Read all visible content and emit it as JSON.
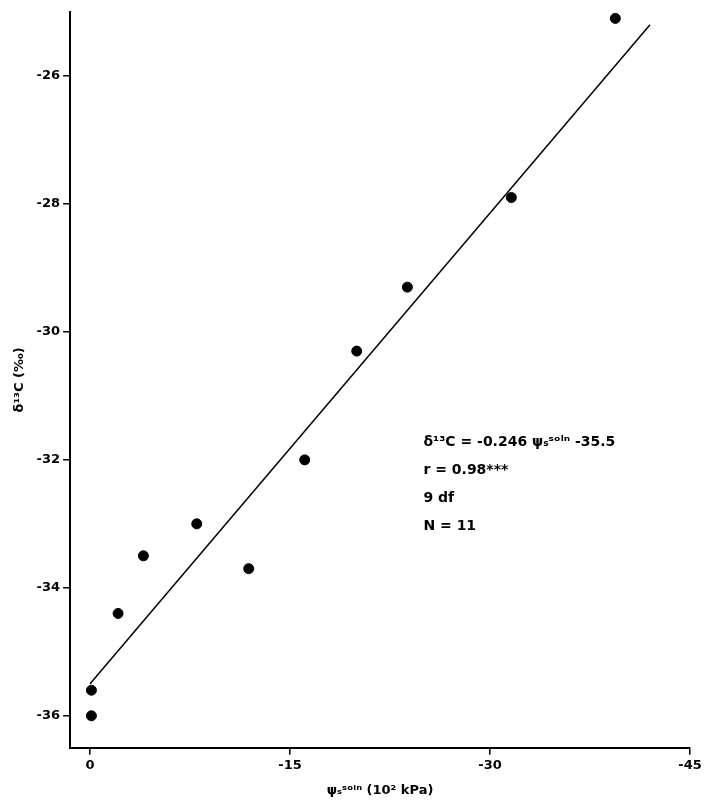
{
  "chart_data": {
    "type": "scatter",
    "x_label": "ψₛˢᵒˡⁿ (10² kPa)",
    "y_label": "δ¹³C (‰)",
    "x": [
      -0.1,
      -0.1,
      -2.1,
      -4.0,
      -8.0,
      -11.9,
      -16.1,
      -20.0,
      -23.8,
      -31.6,
      -39.4
    ],
    "values": [
      -35.6,
      -36.0,
      -34.4,
      -33.5,
      -33.0,
      -33.7,
      -32.0,
      -30.3,
      -29.3,
      -27.9,
      -25.1
    ],
    "color": "#000000",
    "marker": "circle",
    "fit_line": {
      "x": [
        0,
        -42
      ],
      "values": [
        -35.5,
        -25.2
      ],
      "color": "#000000",
      "line_style": "solid"
    },
    "xlim": [
      1.5,
      -45
    ],
    "xticks": [
      0,
      -15,
      -30,
      -45
    ],
    "ylim": [
      -36.5,
      -25
    ],
    "yticks": [
      -26,
      -28,
      -30,
      -32,
      -34,
      -36
    ],
    "grid": false,
    "annotations": [
      "δ¹³C = -0.246 ψₛˢᵒˡⁿ -35.5",
      "r = 0.98***",
      "9 df",
      "N = 11"
    ]
  }
}
